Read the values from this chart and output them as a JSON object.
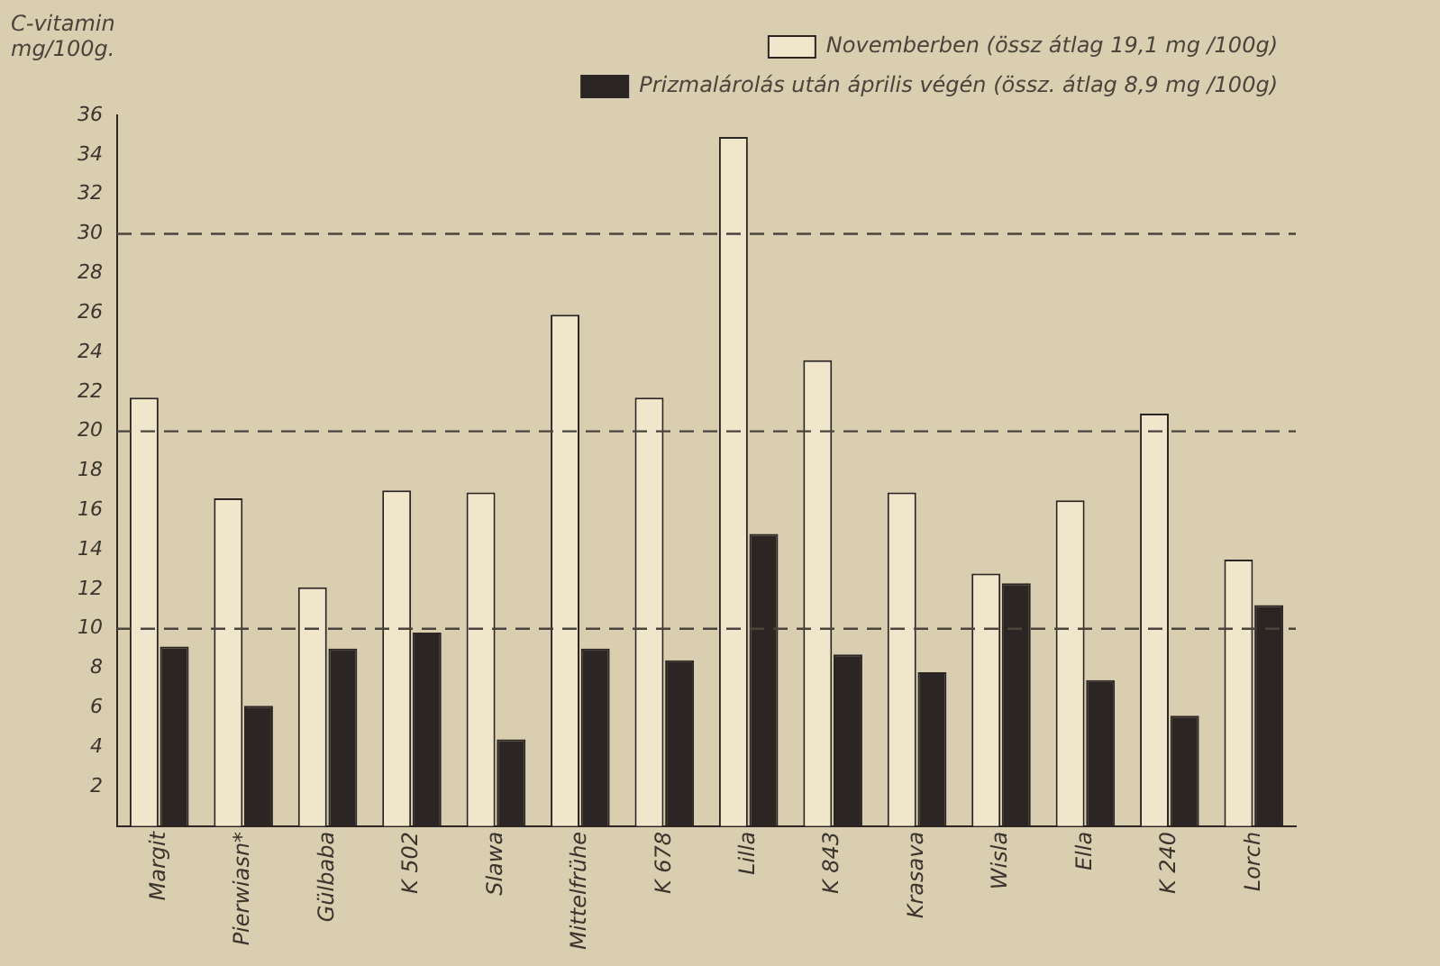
{
  "chart_data": {
    "type": "bar",
    "ylabel": "C-vitamin mg/100g.",
    "categories": [
      "Margit",
      "Pierwiasn*",
      "Gülbaba",
      "K 502",
      "Slawa",
      "Mittelfrühe",
      "K 678",
      "Lilla",
      "K 843",
      "Krasava",
      "Wisla",
      "Ella",
      "K 240",
      "Lorch"
    ],
    "series": [
      {
        "name": "Novemberben (össz átlag 19,1 mg /100g)",
        "color": "#efe6cc",
        "values": [
          21.7,
          16.6,
          12.1,
          17.0,
          16.9,
          25.9,
          21.7,
          34.9,
          23.6,
          16.9,
          12.8,
          16.5,
          20.9,
          13.5
        ]
      },
      {
        "name": "Prizmalárolás után április végén (össz. átlag 8,9 mg /100g)",
        "color": "#2b2623",
        "values": [
          9.1,
          6.1,
          9.0,
          9.8,
          4.4,
          9.0,
          8.4,
          14.8,
          8.7,
          7.8,
          12.3,
          7.4,
          5.6,
          11.2
        ]
      }
    ],
    "ylim": [
      0,
      36
    ],
    "yticks": [
      2,
      4,
      6,
      8,
      10,
      12,
      14,
      16,
      18,
      20,
      22,
      24,
      26,
      28,
      30,
      32,
      34,
      36
    ],
    "ref_lines": [
      {
        "axis": "y",
        "value": 10,
        "color": "#4a443c",
        "line_style": "dashed"
      },
      {
        "axis": "y",
        "value": 20,
        "color": "#4a443c",
        "line_style": "dashed"
      },
      {
        "axis": "y",
        "value": 30,
        "color": "#4a443c",
        "line_style": "dashed"
      }
    ],
    "grid": false,
    "legend": "top right"
  }
}
